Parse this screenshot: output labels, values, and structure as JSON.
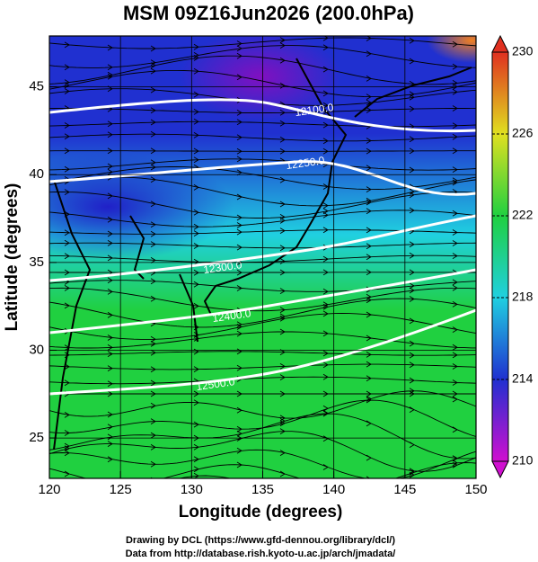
{
  "title": "MSM 09Z16Jun2026 (200.0hPa)",
  "x_axis": {
    "label": "Longitude (degrees)",
    "lim": [
      120,
      150
    ],
    "ticks": [
      120,
      125,
      130,
      135,
      140,
      145,
      150
    ]
  },
  "y_axis": {
    "label": "Latitude  (degrees)",
    "lim": [
      22.7,
      47.9
    ],
    "ticks": [
      25,
      30,
      35,
      40,
      45
    ]
  },
  "grid": true,
  "colorbar": {
    "lim": [
      210,
      230
    ],
    "ticks": [
      210,
      214,
      218,
      222,
      226,
      230
    ],
    "colors": [
      "#d010d0",
      "#2030d0",
      "#20d0e0",
      "#20d040",
      "#e0e020",
      "#e03020"
    ]
  },
  "contours": [
    {
      "label": "12100.0"
    },
    {
      "label": "12250.0"
    },
    {
      "label": "12300.0"
    },
    {
      "label": "12400.0"
    },
    {
      "label": "12500.0"
    }
  ],
  "credits": [
    "Drawing by DCL (https://www.gfd-dennou.org/library/dcl/)",
    "Data from http://database.rish.kyoto-u.ac.jp/arch/jmadata/"
  ]
}
